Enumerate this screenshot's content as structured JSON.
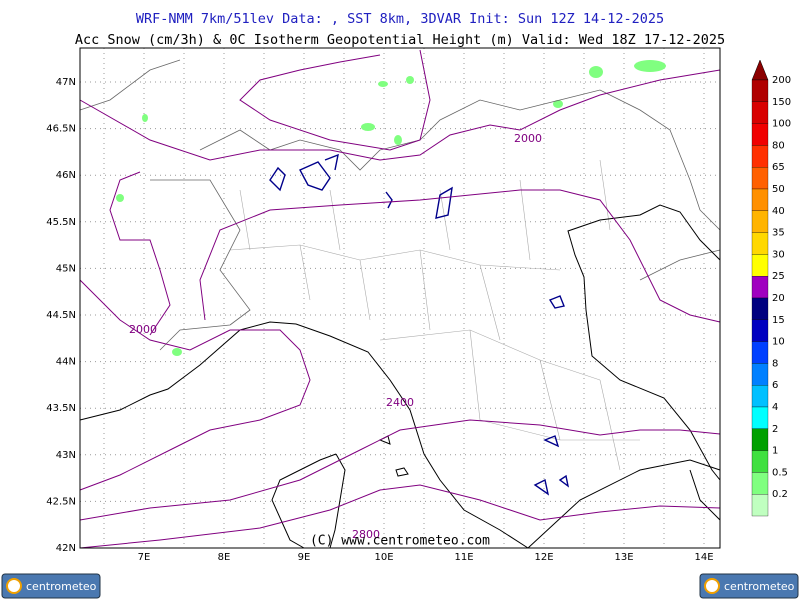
{
  "header": {
    "title": "WRF-NMM 7km/51lev   Data: , SST 8km, 3DVAR   Init: Sun 12Z 14-12-2025",
    "subtitle": "Acc Snow (cm/3h) & 0C Isotherm Geopotential Height (m)  Valid: Wed 18Z 17-12-2025"
  },
  "map": {
    "lat_labels": [
      "47N",
      "46.5N",
      "46N",
      "45.5N",
      "45N",
      "44.5N",
      "44N",
      "43.5N",
      "43N",
      "42.5N",
      "42N"
    ],
    "lon_labels": [
      "7E",
      "8E",
      "9E",
      "10E",
      "11E",
      "12E",
      "13E",
      "14E"
    ],
    "contour_labels": [
      "2000",
      "2000",
      "2400",
      "2800"
    ],
    "copyright": "(C) www.centrometeo.com"
  },
  "colorbar": {
    "labels": [
      "200",
      "150",
      "100",
      "80",
      "65",
      "50",
      "40",
      "35",
      "30",
      "25",
      "20",
      "15",
      "10",
      "8",
      "6",
      "4",
      "2",
      "1",
      "0.5",
      "0.2"
    ],
    "colors": [
      "#8b0000",
      "#b00000",
      "#d80000",
      "#f00000",
      "#ff3000",
      "#ff6000",
      "#ff9000",
      "#ffb400",
      "#ffd800",
      "#ffff00",
      "#a000c0",
      "#000080",
      "#0000c0",
      "#0040ff",
      "#0080ff",
      "#00c0ff",
      "#00ffff",
      "#00a000",
      "#40e040",
      "#80ff80",
      "#c0ffc0"
    ]
  },
  "footer": {
    "logo": "centrometeo"
  }
}
